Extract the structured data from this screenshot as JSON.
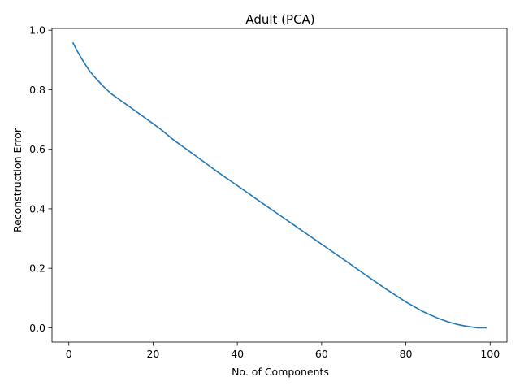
{
  "chart_data": {
    "type": "line",
    "title": "Adult (PCA)",
    "xlabel": "No. of Components",
    "ylabel": "Reconstruction Error",
    "xlim": [
      -4,
      104
    ],
    "ylim": [
      -0.048,
      1.006
    ],
    "xticks": [
      0,
      20,
      40,
      60,
      80,
      100
    ],
    "xtick_labels": [
      "0",
      "20",
      "40",
      "60",
      "80",
      "100"
    ],
    "yticks": [
      0.0,
      0.2,
      0.4,
      0.6,
      0.8,
      1.0
    ],
    "ytick_labels": [
      "0.0",
      "0.2",
      "0.4",
      "0.6",
      "0.8",
      "1.0"
    ],
    "grid": false,
    "series": [
      {
        "color": "#1f77b4",
        "x": [
          1,
          2,
          3,
          4,
          5,
          6,
          8,
          10,
          12,
          15,
          20,
          22,
          25,
          30,
          35,
          40,
          45,
          50,
          55,
          60,
          65,
          70,
          75,
          80,
          82,
          84,
          86,
          88,
          90,
          92,
          94,
          96,
          97,
          98,
          99
        ],
        "y": [
          0.957,
          0.93,
          0.905,
          0.883,
          0.862,
          0.845,
          0.814,
          0.787,
          0.767,
          0.737,
          0.686,
          0.665,
          0.63,
          0.579,
          0.527,
          0.478,
          0.428,
          0.379,
          0.33,
          0.281,
          0.232,
          0.182,
          0.133,
          0.087,
          0.071,
          0.055,
          0.042,
          0.03,
          0.02,
          0.012,
          0.006,
          0.002,
          0.0,
          0.0,
          0.0
        ]
      }
    ]
  }
}
